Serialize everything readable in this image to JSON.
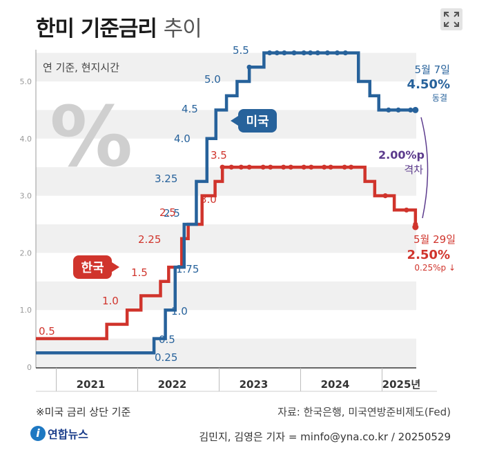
{
  "header": {
    "title_bold": "한미 기준금리",
    "title_light": "추이"
  },
  "colors": {
    "us": "#27629b",
    "kr": "#d0342c",
    "gap": "#5b3a8c",
    "grid": "#f0f0f0"
  },
  "chart_data": {
    "type": "line",
    "subtitle": "연 기준, 현지시간",
    "ylim": [
      0,
      5.5
    ],
    "yticks": [
      "0",
      "1.0",
      "2.0",
      "3.0",
      "4.0",
      "5.0"
    ],
    "xlim": [
      2020.75,
      2025.42
    ],
    "xticks": [
      "2021",
      "2022",
      "2023",
      "2024",
      "2025년"
    ],
    "series": [
      {
        "name": "미국",
        "steps": [
          {
            "x": 2020.75,
            "y": 0.25
          },
          {
            "x": 2022.2,
            "y": 0.5
          },
          {
            "x": 2022.34,
            "y": 1.0
          },
          {
            "x": 2022.46,
            "y": 1.75
          },
          {
            "x": 2022.57,
            "y": 2.5
          },
          {
            "x": 2022.72,
            "y": 3.25
          },
          {
            "x": 2022.85,
            "y": 4.0
          },
          {
            "x": 2022.96,
            "y": 4.5
          },
          {
            "x": 2023.09,
            "y": 4.75
          },
          {
            "x": 2023.22,
            "y": 5.0
          },
          {
            "x": 2023.37,
            "y": 5.25
          },
          {
            "x": 2023.55,
            "y": 5.5
          },
          {
            "x": 2024.71,
            "y": 5.0
          },
          {
            "x": 2024.85,
            "y": 4.75
          },
          {
            "x": 2024.96,
            "y": 4.5
          },
          {
            "x": 2025.42,
            "y": 4.5
          }
        ],
        "dots": [
          2023.37,
          2023.62,
          2023.71,
          2023.8,
          2023.92,
          2024.04,
          2024.12,
          2024.21,
          2024.33,
          2024.45,
          2024.55,
          2025.08,
          2025.2,
          2025.35
        ],
        "labels": [
          "0.25",
          "0.5",
          "1.0",
          "1.75",
          "2.5",
          "3.25",
          "4.0",
          "4.5",
          "5.0",
          "5.5"
        ],
        "tag": "미국",
        "end_label": {
          "date": "5월 7일",
          "value": "4.50%",
          "note": "동결"
        }
      },
      {
        "name": "한국",
        "steps": [
          {
            "x": 2020.75,
            "y": 0.5
          },
          {
            "x": 2021.62,
            "y": 0.75
          },
          {
            "x": 2021.87,
            "y": 1.0
          },
          {
            "x": 2022.04,
            "y": 1.25
          },
          {
            "x": 2022.28,
            "y": 1.5
          },
          {
            "x": 2022.38,
            "y": 1.75
          },
          {
            "x": 2022.54,
            "y": 2.25
          },
          {
            "x": 2022.62,
            "y": 2.5
          },
          {
            "x": 2022.79,
            "y": 3.0
          },
          {
            "x": 2022.95,
            "y": 3.25
          },
          {
            "x": 2023.04,
            "y": 3.5
          },
          {
            "x": 2024.79,
            "y": 3.25
          },
          {
            "x": 2024.91,
            "y": 3.0
          },
          {
            "x": 2025.15,
            "y": 2.75
          },
          {
            "x": 2025.41,
            "y": 2.5
          }
        ],
        "dots": [
          2023.04,
          2023.15,
          2023.27,
          2023.37,
          2023.54,
          2023.63,
          2023.79,
          2023.88,
          2024.04,
          2024.13,
          2024.29,
          2024.37,
          2024.54,
          2024.62,
          2025.04,
          2025.3,
          2025.41
        ],
        "labels": [
          "0.5",
          "1.0",
          "1.5",
          "2.25",
          "2.5",
          "3.0",
          "3.5"
        ],
        "tag": "한국",
        "end_label": {
          "date": "5월 29일",
          "value": "2.50%",
          "note": "0.25%p ↓"
        }
      }
    ],
    "gap_annotation": {
      "value": "2.00%p",
      "label": "격차"
    },
    "watermark": "%"
  },
  "footer": {
    "note": "※미국 금리 상단 기준",
    "source": "자료: 한국은행, 미국연방준비제도(Fed)",
    "credit": "김민지, 김영은 기자 = minfo@yna.co.kr / 20250529",
    "logo_text": "연합뉴스"
  }
}
